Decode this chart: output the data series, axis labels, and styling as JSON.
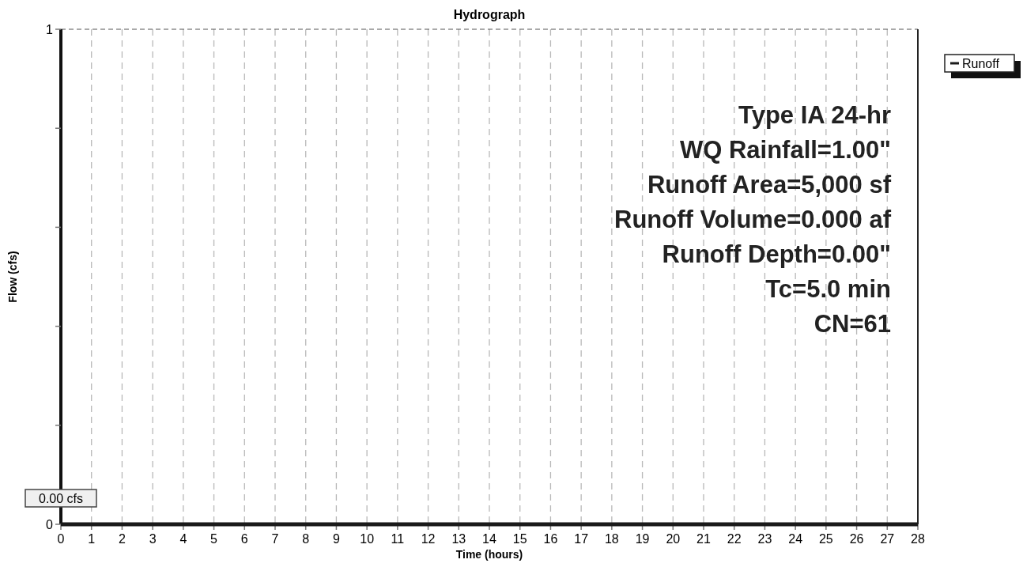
{
  "chart_data": {
    "type": "line",
    "title": "Hydrograph",
    "xlabel": "Time  (hours)",
    "ylabel": "Flow  (cfs)",
    "x": [
      0,
      28
    ],
    "series": [
      {
        "name": "Runoff",
        "color": "#1a1a1a",
        "values": [
          0,
          0
        ]
      }
    ],
    "xlim": [
      0,
      28
    ],
    "xticks": [
      0,
      1,
      2,
      3,
      4,
      5,
      6,
      7,
      8,
      9,
      10,
      11,
      12,
      13,
      14,
      15,
      16,
      17,
      18,
      19,
      20,
      21,
      22,
      23,
      24,
      25,
      26,
      27,
      28
    ],
    "ylim": [
      0,
      1
    ],
    "yticks": [
      0,
      {
        "value": 0.2,
        "label": null
      },
      {
        "value": 0.4,
        "label": null
      },
      {
        "value": 0.6,
        "label": null
      },
      {
        "value": 0.8,
        "label": null
      },
      1
    ],
    "grid": "x",
    "legend": "top right",
    "marker": "none",
    "line_style": "solid",
    "annotations": [
      {
        "text": "0.00 cfs",
        "x": 0,
        "y": 0
      },
      "Type IA 24-hr",
      "WQ Rainfall=1.00\"",
      "Runoff Area=5,000 sf",
      "Runoff Volume=0.000 af",
      "Runoff Depth=0.00\"",
      "Tc=5.0 min",
      "CN=61"
    ]
  }
}
